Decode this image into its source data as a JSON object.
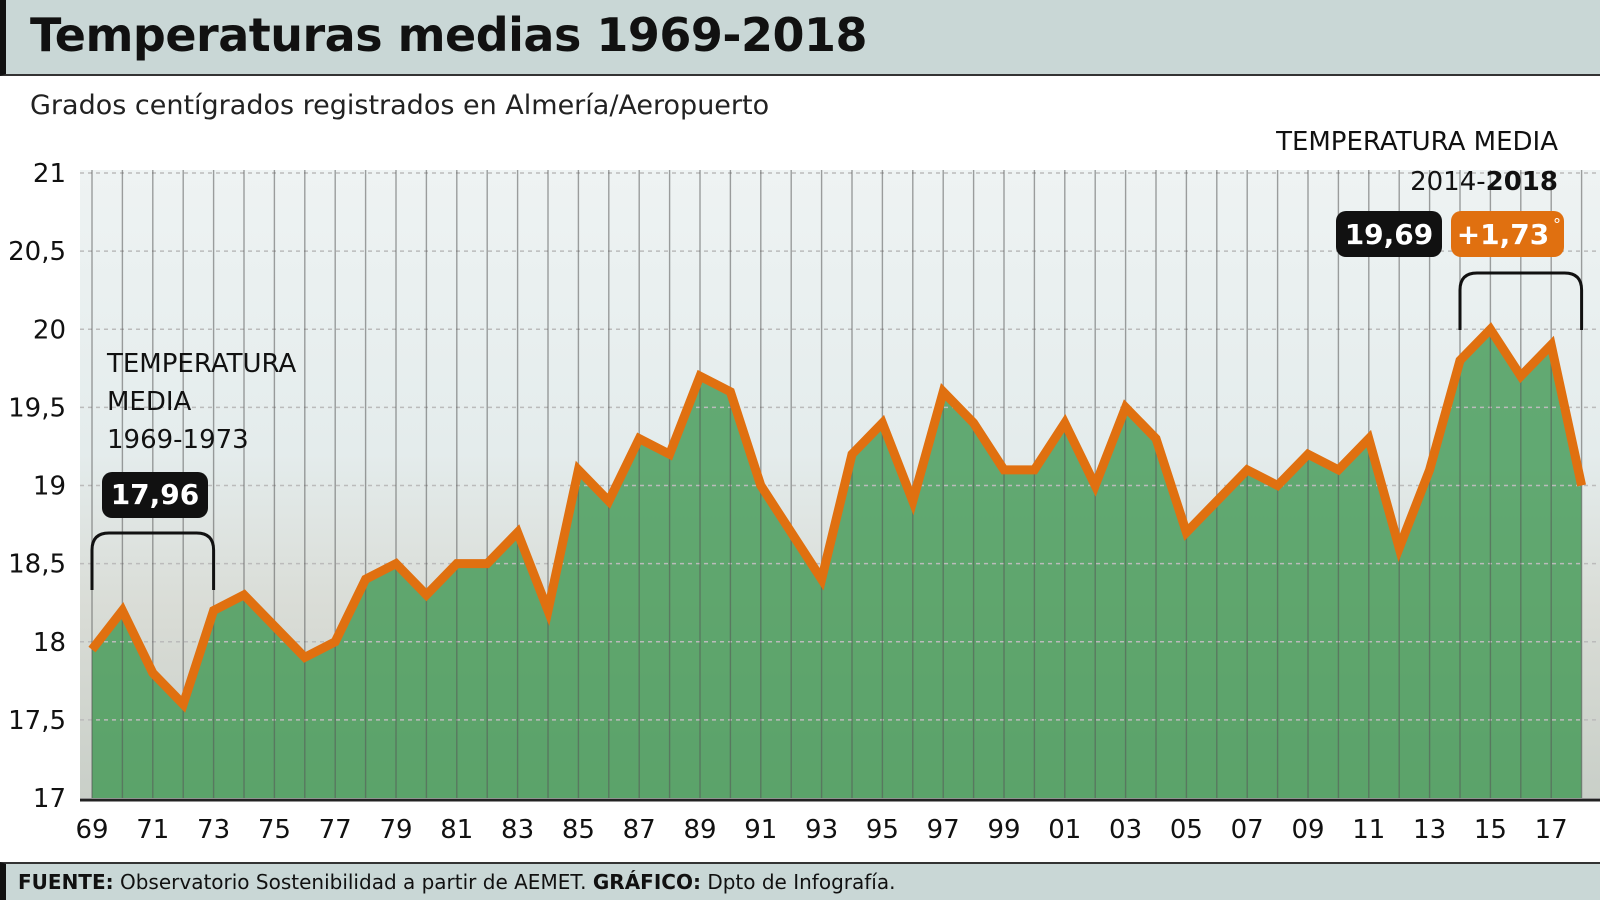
{
  "title": "Temperaturas medias 1969-2018",
  "subtitle": "Grados centígrados registrados en Almería/Aeropuerto",
  "footer": {
    "source_label": "FUENTE:",
    "source": "Observatorio Sostenibilidad a partir de AEMET.",
    "graphic_label": "GRÁFICO:",
    "graphic": "Dpto de Infografía."
  },
  "colors": {
    "line": "#e07010",
    "area": "#3c9650",
    "header": "#c9d7d6",
    "badge_dark": "#111111",
    "badge_orange": "#e07010"
  },
  "chart_data": {
    "type": "area",
    "title": "Temperaturas medias 1969-2018",
    "subtitle": "Grados centígrados registrados en Almería/Aeropuerto",
    "ylim": [
      17,
      21
    ],
    "yticks": [
      "17",
      "17,5",
      "18",
      "18,5",
      "19",
      "19,5",
      "20",
      "20,5",
      "21"
    ],
    "xtick_labels": [
      "69",
      "71",
      "73",
      "75",
      "77",
      "79",
      "81",
      "83",
      "85",
      "87",
      "89",
      "91",
      "93",
      "95",
      "97",
      "99",
      "01",
      "03",
      "05",
      "07",
      "09",
      "11",
      "13",
      "15",
      "17"
    ],
    "grid": "horizontal dashed",
    "x": [
      1969,
      1970,
      1971,
      1972,
      1973,
      1974,
      1975,
      1976,
      1977,
      1978,
      1979,
      1980,
      1981,
      1982,
      1983,
      1984,
      1985,
      1986,
      1987,
      1988,
      1989,
      1990,
      1991,
      1992,
      1993,
      1994,
      1995,
      1996,
      1997,
      1998,
      1999,
      2000,
      2001,
      2002,
      2003,
      2004,
      2005,
      2006,
      2007,
      2008,
      2009,
      2010,
      2011,
      2012,
      2013,
      2014,
      2015,
      2016,
      2017,
      2018
    ],
    "values": [
      17.95,
      18.2,
      17.8,
      17.6,
      18.2,
      18.3,
      18.1,
      17.9,
      18.0,
      18.4,
      18.5,
      18.3,
      18.5,
      18.5,
      18.7,
      18.2,
      19.1,
      18.9,
      19.3,
      19.2,
      19.7,
      19.6,
      19.0,
      18.7,
      18.4,
      19.2,
      19.4,
      18.9,
      19.6,
      19.4,
      19.1,
      19.1,
      19.4,
      19.0,
      19.5,
      19.3,
      18.7,
      18.9,
      19.1,
      19.0,
      19.2,
      19.1,
      19.3,
      18.6,
      19.1,
      19.8,
      20.0,
      19.7,
      19.9,
      19.0
    ],
    "annotations": [
      {
        "label_lines": [
          "TEMPERATURA",
          "MEDIA",
          "1969-1973"
        ],
        "value": "17,96",
        "range": [
          1969,
          1973
        ]
      },
      {
        "label_lines": [
          "TEMPERATURA MEDIA",
          "2014-",
          "2018"
        ],
        "value": "19,69",
        "delta": "+1,73",
        "delta_unit": "°",
        "range": [
          2014,
          2018
        ]
      }
    ]
  }
}
